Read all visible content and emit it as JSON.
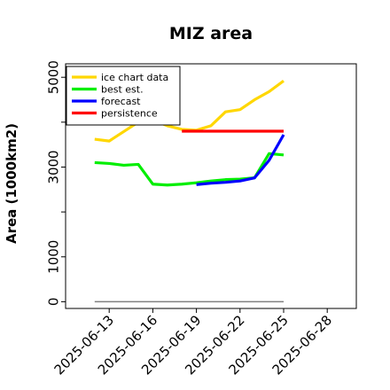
{
  "chart_data": {
    "type": "line",
    "title": "MIZ area",
    "xlabel": "",
    "ylabel": "Area (1000km2)",
    "x_range_day": [
      10,
      30
    ],
    "ylim": [
      -150,
      5300
    ],
    "yticks": [
      {
        "value": 0,
        "label": "0"
      },
      {
        "value": 1000,
        "label": "1000"
      },
      {
        "value": 3000,
        "label": "3000"
      },
      {
        "value": 5000,
        "label": "5000"
      }
    ],
    "yminor_ticks": [
      2000,
      4000
    ],
    "xticks": [
      {
        "day": 13,
        "label": "2025-06-13",
        "color": "#000000"
      },
      {
        "day": 16,
        "label": "2025-06-16",
        "color": "#000000"
      },
      {
        "day": 19,
        "label": "2025-06-19",
        "color": "#1a8c1a"
      },
      {
        "day": 22,
        "label": "2025-06-22",
        "color": "#000000"
      },
      {
        "day": 25,
        "label": "2025-06-25",
        "color": "#000000"
      },
      {
        "day": 28,
        "label": "2025-06-28",
        "color": "#000000"
      }
    ],
    "legend": {
      "placement": "upper-left"
    },
    "series": [
      {
        "name": "ice chart data",
        "color": "#ffd700",
        "points": [
          [
            12,
            3620
          ],
          [
            13,
            3580
          ],
          [
            15,
            4000
          ],
          [
            16,
            4050
          ],
          [
            17,
            3920
          ],
          [
            18,
            3840
          ],
          [
            19,
            3820
          ],
          [
            20,
            3920
          ],
          [
            21,
            4230
          ],
          [
            22,
            4280
          ],
          [
            23,
            4500
          ],
          [
            24,
            4680
          ],
          [
            25,
            4920
          ]
        ]
      },
      {
        "name": "best est.",
        "color": "#00ee00",
        "points": [
          [
            12,
            3100
          ],
          [
            13,
            3080
          ],
          [
            14,
            3040
          ],
          [
            15,
            3060
          ],
          [
            16,
            2620
          ],
          [
            17,
            2600
          ],
          [
            18,
            2620
          ],
          [
            19,
            2650
          ],
          [
            20,
            2690
          ],
          [
            21,
            2720
          ],
          [
            22,
            2730
          ],
          [
            23,
            2760
          ],
          [
            24,
            3300
          ],
          [
            25,
            3270
          ]
        ]
      },
      {
        "name": "forecast",
        "color": "#0000ff",
        "points": [
          [
            19,
            2610
          ],
          [
            20,
            2640
          ],
          [
            21,
            2660
          ],
          [
            22,
            2690
          ],
          [
            23,
            2760
          ],
          [
            24,
            3150
          ],
          [
            25,
            3720
          ]
        ]
      },
      {
        "name": "persistence",
        "color": "#ff0000",
        "points": [
          [
            18,
            3800
          ],
          [
            25,
            3800
          ]
        ]
      }
    ],
    "baseline": {
      "color": "#808080",
      "points": [
        [
          12,
          0
        ],
        [
          25,
          0
        ]
      ]
    }
  }
}
